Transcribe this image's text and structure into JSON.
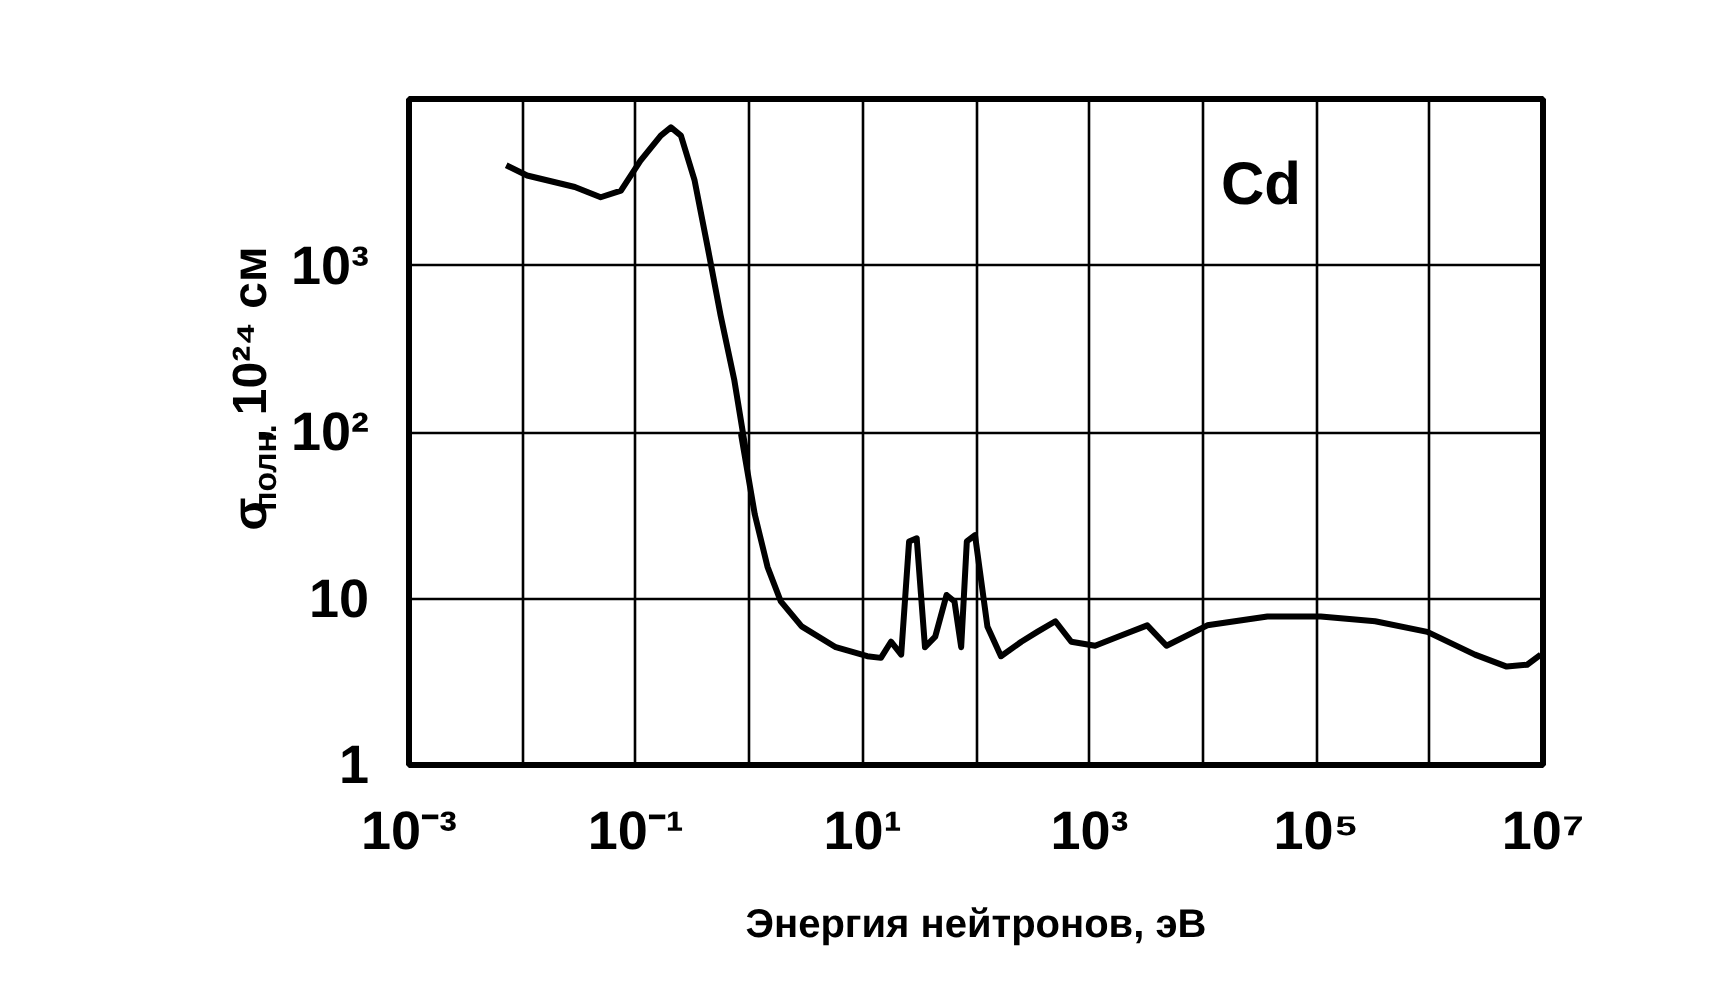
{
  "chart_data": {
    "type": "line",
    "xlabel": "Энергия нейтронов, эВ",
    "ylabel": "σ$_{полн.}$, 10²⁴ см",
    "annotations": [
      "Cd"
    ],
    "log": "xy",
    "grid": true,
    "xlim": [
      0.001,
      10000000
    ],
    "ylim": [
      1,
      10000
    ],
    "xticks": [
      {
        "value": 0.001,
        "label": "10⁻³"
      },
      {
        "value": 0.01,
        "label": null
      },
      {
        "value": 0.1,
        "label": "10⁻¹"
      },
      {
        "value": 1,
        "label": null
      },
      {
        "value": 10,
        "label": "10¹"
      },
      {
        "value": 100,
        "label": null
      },
      {
        "value": 1000,
        "label": "10³"
      },
      {
        "value": 10000,
        "label": null
      },
      {
        "value": 100000,
        "label": "10⁵"
      },
      {
        "value": 1000000,
        "label": null
      },
      {
        "value": 10000000,
        "label": "10⁷"
      }
    ],
    "yticks": [
      1,
      10,
      {
        "value": 100,
        "label": "10²"
      },
      {
        "value": 1000,
        "label": "10³"
      }
    ],
    "series": [
      {
        "color": "#000000",
        "line_style": "solid",
        "marker": "none",
        "x": [
          0.0072,
          0.011,
          0.029,
          0.049,
          0.074,
          0.11,
          0.166,
          0.204,
          0.25,
          0.33,
          0.43,
          0.56,
          0.74,
          0.95,
          0.85,
          1.12,
          1.45,
          1.9,
          2.9,
          5.8,
          11,
          14.5,
          17.8,
          21.9,
          25.7,
          30,
          35.5,
          43.7,
          55,
          64.6,
          74,
          83,
          98,
          126,
          166,
          251,
          347,
          501,
          692,
          1122,
          1905,
          3236,
          4786,
          10960,
          37150,
          109600,
          331100,
          955000,
          2512000,
          4786000,
          7244000,
          9550000
        ],
        "values": [
          4000,
          3470,
          2960,
          2570,
          2820,
          4260,
          6030,
          6760,
          6030,
          3240,
          1290,
          500,
          204,
          72,
          96,
          32,
          15.5,
          9.6,
          6.8,
          5.1,
          4.5,
          4.4,
          5.5,
          4.6,
          22,
          23,
          5.1,
          5.9,
          10.5,
          9.6,
          5.1,
          22,
          24,
          6.8,
          4.5,
          5.5,
          6.3,
          7.3,
          5.5,
          5.2,
          6.0,
          6.9,
          5.2,
          6.9,
          7.8,
          7.8,
          7.3,
          6.3,
          4.6,
          3.9,
          4.0,
          4.6
        ]
      }
    ]
  }
}
